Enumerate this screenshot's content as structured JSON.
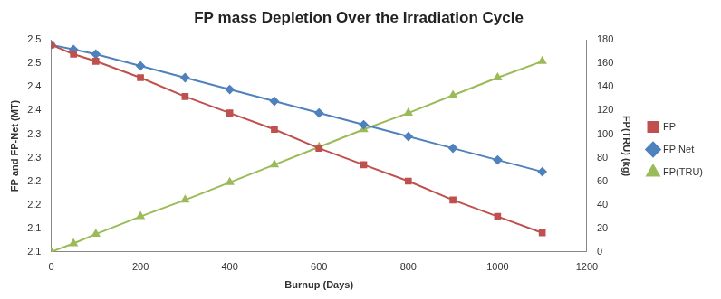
{
  "chart_data": {
    "type": "line",
    "title": "FP mass Depletion Over the Irradiation Cycle",
    "x_label": "Burnup (Days)",
    "y_label": "FP and FP-Net (MT)",
    "y2_label": "FP(TRU) (kg)",
    "x": [
      0,
      50,
      100,
      200,
      300,
      400,
      500,
      600,
      700,
      800,
      900,
      1000,
      1100
    ],
    "series": [
      {
        "name": "FP",
        "color": "#c0504d",
        "marker": "square",
        "values": [
          2.54,
          2.52,
          2.505,
          2.47,
          2.43,
          2.395,
          2.36,
          2.32,
          2.285,
          2.25,
          2.21,
          2.175,
          2.14
        ]
      },
      {
        "name": "FP Net",
        "color": "#4f81bd",
        "marker": "diamond",
        "values": [
          2.54,
          2.53,
          2.52,
          2.495,
          2.47,
          2.445,
          2.42,
          2.395,
          2.37,
          2.345,
          2.32,
          2.295,
          2.27
        ]
      },
      {
        "name": "FP(TRU)",
        "color": "#9bbb59",
        "marker": "triangle",
        "axis": "y2",
        "values": [
          0,
          7,
          15,
          30,
          44,
          59,
          74,
          89,
          104,
          118,
          133,
          148,
          162
        ]
      }
    ],
    "xlim": [
      0,
      1200
    ],
    "xticks": [
      0,
      200,
      400,
      600,
      800,
      1000,
      1200
    ],
    "ylim": [
      2.1,
      2.55
    ],
    "yticks": [
      2.1,
      {
        "value": 2.15,
        "label": "2.1"
      },
      2.2,
      {
        "value": 2.25,
        "label": "2.2"
      },
      2.3,
      {
        "value": 2.35,
        "label": "2.3"
      },
      2.4,
      {
        "value": 2.45,
        "label": "2.4"
      },
      2.5,
      {
        "value": 2.55,
        "label": "2.5"
      }
    ],
    "y2lim": [
      0,
      180
    ],
    "y2ticks": [
      0,
      20,
      40,
      60,
      80,
      100,
      120,
      140,
      160,
      180
    ],
    "grid": false,
    "legend": "right"
  }
}
